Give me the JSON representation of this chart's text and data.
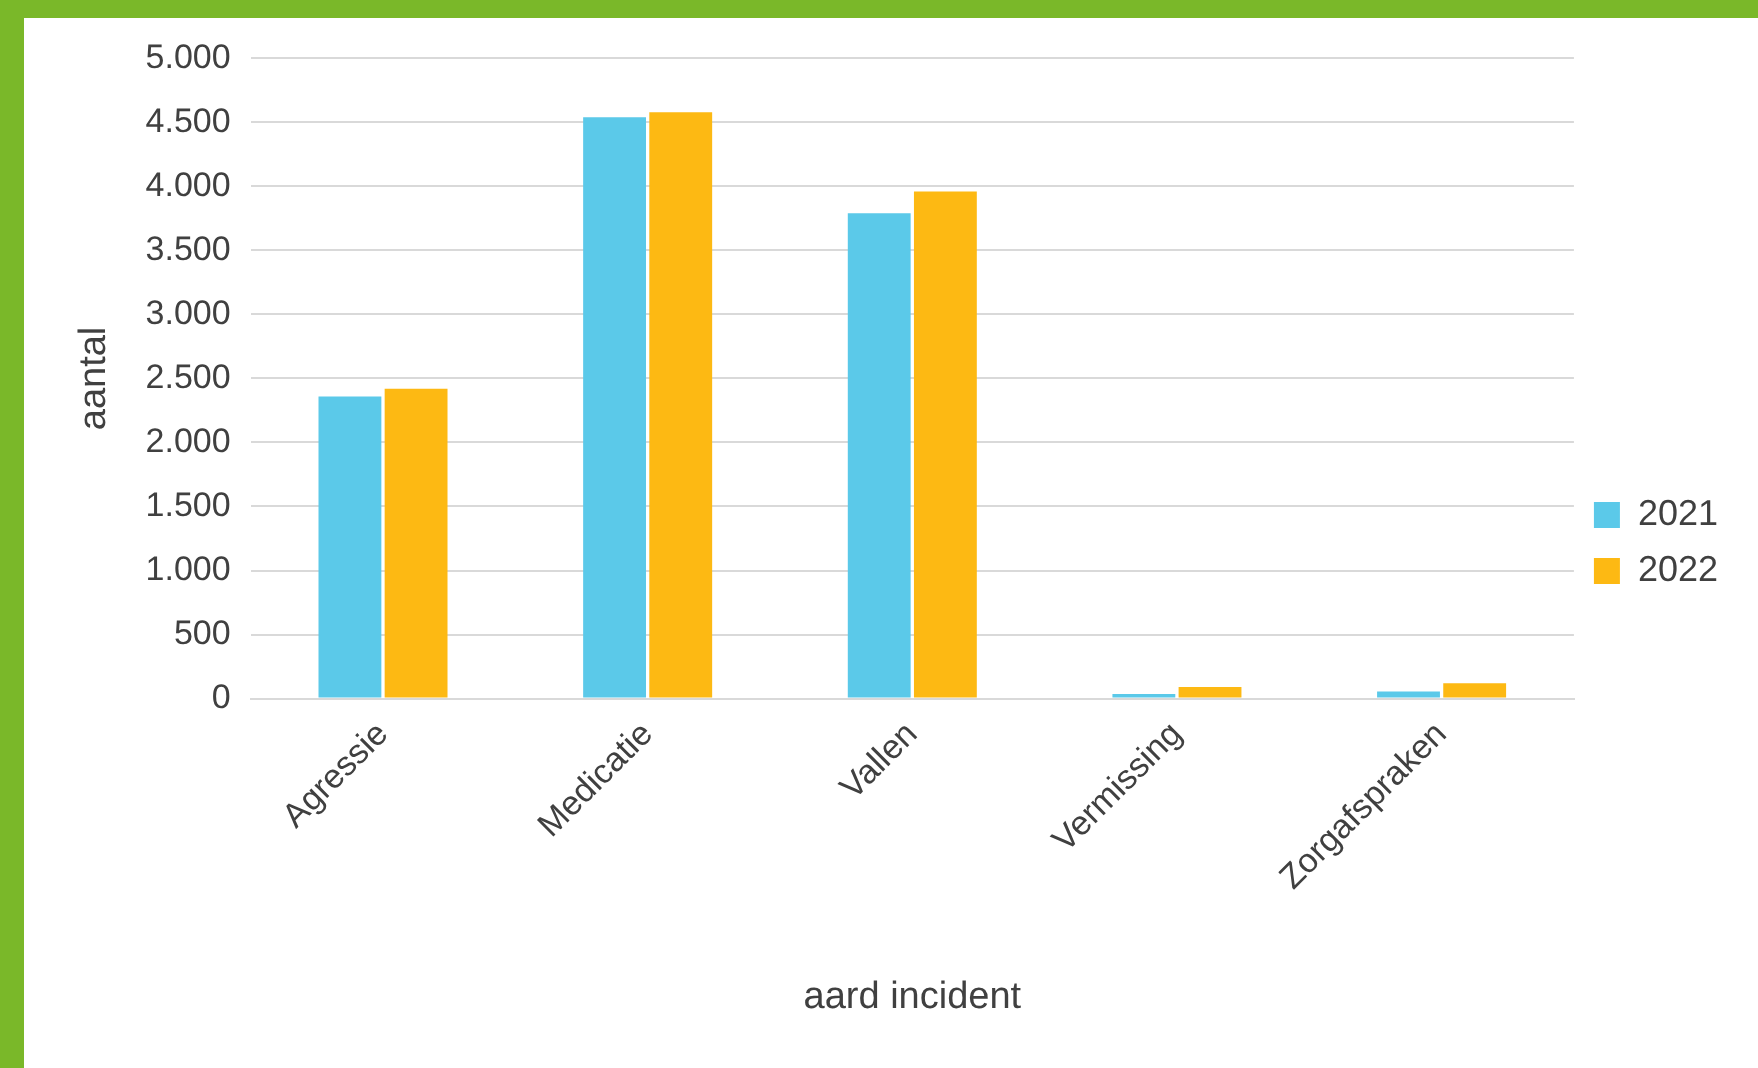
{
  "chart_data": {
    "type": "bar",
    "xlabel": "aard incident",
    "ylabel": "aantal",
    "categories": [
      "Agressie",
      "Medicatie",
      "Vallen",
      "Vermissing",
      "Zorgafspraken"
    ],
    "series": [
      {
        "name": "2021",
        "color": "#5bc9e9",
        "values": [
          2360,
          4540,
          3790,
          35,
          55
        ]
      },
      {
        "name": "2022",
        "color": "#fdb913",
        "values": [
          2420,
          4580,
          3960,
          90,
          120
        ]
      }
    ],
    "ylim": [
      0,
      5000
    ],
    "yticks": [
      {
        "value": 0,
        "label": "0"
      },
      {
        "value": 500,
        "label": "500"
      },
      {
        "value": 1000,
        "label": "1.000"
      },
      {
        "value": 1500,
        "label": "1.500"
      },
      {
        "value": 2000,
        "label": "2.000"
      },
      {
        "value": 2500,
        "label": "2.500"
      },
      {
        "value": 3000,
        "label": "3.000"
      },
      {
        "value": 3500,
        "label": "3.500"
      },
      {
        "value": 4000,
        "label": "4.000"
      },
      {
        "value": 4500,
        "label": "4.500"
      },
      {
        "value": 5000,
        "label": "5.000"
      }
    ],
    "grid": "y",
    "legend": "right"
  }
}
